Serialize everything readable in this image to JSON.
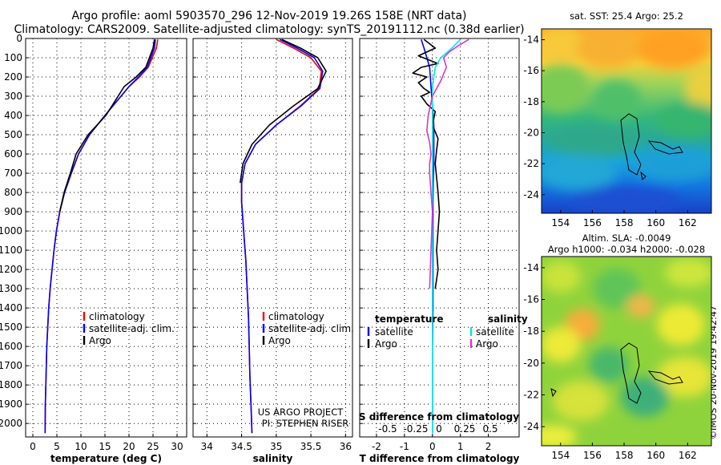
{
  "header": {
    "title_line1": "Argo profile: aoml 5903570_296 12-Nov-2019 19.26S 158E (NRT data)",
    "title_line2": "Climatology: CARS2009. Satellite-adjusted climatology: synTS_20191112.nc (0.38d earlier)"
  },
  "depth_axis": {
    "ticks": [
      0,
      100,
      200,
      300,
      400,
      500,
      600,
      700,
      800,
      900,
      1000,
      1100,
      1200,
      1300,
      1400,
      1500,
      1600,
      1700,
      1800,
      1900,
      2000
    ],
    "ylim": [
      2070,
      0
    ]
  },
  "chart_data": [
    {
      "type": "line",
      "id": "temperature",
      "xlabel": "temperature (deg C)",
      "xlim": [
        -1.5,
        32
      ],
      "xticks": [
        0,
        5,
        10,
        15,
        20,
        25,
        30
      ],
      "xtick_labels": [
        "0",
        "5",
        "10",
        "15",
        "20",
        "25",
        "30"
      ],
      "legend": {
        "position": "center-right",
        "items": [
          "climatology",
          "satellite-adj. clim.",
          "Argo"
        ]
      },
      "series": [
        {
          "name": "climatology",
          "color": "#ff0000",
          "x": [
            26.0,
            25.7,
            24.0,
            22.2,
            20.0,
            15.0,
            11.8,
            9.5,
            8.0,
            6.6,
            5.6,
            4.9,
            4.4,
            4.0,
            3.6,
            3.3,
            3.1,
            2.9,
            2.8,
            2.7,
            2.6,
            2.55
          ],
          "y": [
            5,
            50,
            150,
            200,
            250,
            400,
            500,
            600,
            700,
            800,
            900,
            1000,
            1100,
            1200,
            1300,
            1400,
            1500,
            1600,
            1700,
            1800,
            1900,
            2050
          ]
        },
        {
          "name": "satellite-adj. clim.",
          "color": "#0000ff",
          "x": [
            25.5,
            25.3,
            23.8,
            22.0,
            20.0,
            15.0,
            11.8,
            9.5,
            8.0,
            6.6,
            5.6,
            4.9,
            4.4,
            4.0,
            3.6,
            3.3,
            3.1,
            2.9,
            2.8,
            2.7,
            2.6,
            2.55
          ],
          "y": [
            5,
            50,
            150,
            200,
            250,
            400,
            500,
            600,
            700,
            800,
            900,
            1000,
            1100,
            1200,
            1300,
            1400,
            1500,
            1600,
            1700,
            1800,
            1900,
            2050
          ]
        },
        {
          "name": "Argo",
          "color": "#000000",
          "x": [
            25.3,
            25.0,
            23.5,
            21.5,
            19.0,
            15.2,
            11.5,
            9.0,
            7.8,
            6.5,
            5.6
          ],
          "y": [
            5,
            50,
            150,
            200,
            250,
            400,
            500,
            600,
            700,
            800,
            900
          ]
        }
      ]
    },
    {
      "type": "line",
      "id": "salinity",
      "xlabel": "salinity",
      "xlim": [
        33.8,
        36.1
      ],
      "xticks": [
        34,
        34.5,
        35,
        35.5,
        36
      ],
      "xtick_labels": [
        "34",
        "34.5",
        "35",
        "35.5",
        "36"
      ],
      "legend": {
        "position": "center-right",
        "items": [
          "climatology",
          "satellite-adj. clim.",
          "Argo"
        ]
      },
      "series": [
        {
          "name": "climatology",
          "color": "#ff0000",
          "x": [
            35.0,
            35.25,
            35.5,
            35.65,
            35.62,
            35.35,
            35.0,
            34.7,
            34.55,
            34.5,
            34.5,
            34.52,
            34.54,
            34.56,
            34.58,
            34.6,
            34.61,
            34.62,
            34.63,
            34.64,
            34.65
          ],
          "y": [
            5,
            50,
            100,
            170,
            260,
            350,
            450,
            550,
            650,
            750,
            850,
            950,
            1050,
            1150,
            1300,
            1450,
            1600,
            1750,
            1850,
            1950,
            2050
          ]
        },
        {
          "name": "satellite-adj. clim.",
          "color": "#0000ff",
          "x": [
            35.05,
            35.3,
            35.55,
            35.67,
            35.63,
            35.36,
            35.0,
            34.7,
            34.55,
            34.5,
            34.5,
            34.52,
            34.54,
            34.56,
            34.58,
            34.6,
            34.61,
            34.62,
            34.63,
            34.64,
            34.65
          ],
          "y": [
            5,
            50,
            100,
            170,
            260,
            350,
            450,
            550,
            650,
            750,
            850,
            950,
            1050,
            1150,
            1300,
            1450,
            1600,
            1750,
            1850,
            1950,
            2050
          ]
        },
        {
          "name": "Argo",
          "color": "#000000",
          "x": [
            35.08,
            35.35,
            35.6,
            35.72,
            35.6,
            35.25,
            34.9,
            34.65,
            34.52,
            34.48
          ],
          "y": [
            5,
            50,
            100,
            170,
            260,
            350,
            450,
            550,
            650,
            750
          ]
        }
      ]
    },
    {
      "type": "line",
      "id": "difference",
      "xlabel": "T difference from climatology",
      "xlabel2": "S difference from climatology",
      "xlim": [
        -2.6,
        3.1
      ],
      "xticks": [
        -2,
        -1,
        0,
        1,
        2
      ],
      "xtick_labels": [
        "-2",
        "-1",
        "0",
        "1",
        "2"
      ],
      "s_tick_labels": [
        "-0.5",
        "-0.25",
        "0",
        "0.25",
        "0.5"
      ],
      "legend": {
        "temperature_title": "temperature",
        "salinity_title": "salinity",
        "items": [
          "satellite",
          "Argo",
          "satellite",
          "Argo"
        ]
      },
      "series": [
        {
          "name": "temperature satellite",
          "color": "#0000ff",
          "x": [
            -0.4,
            -0.3,
            -0.2,
            -0.1,
            -0.05,
            0,
            0.05,
            0.05,
            0.05,
            0.03,
            0.02,
            0.02,
            0.02,
            0.02,
            0.02,
            0.0,
            0.0,
            0.0
          ],
          "y": [
            5,
            50,
            100,
            150,
            250,
            350,
            450,
            550,
            650,
            750,
            850,
            950,
            1050,
            1200,
            1400,
            1600,
            1800,
            2050
          ]
        },
        {
          "name": "temperature Argo",
          "color": "#000000",
          "x": [
            -0.3,
            0.1,
            -0.5,
            0.2,
            -0.4,
            -0.7,
            -0.2,
            -0.5,
            -0.3,
            -0.1,
            -0.4,
            -0.2,
            0.1,
            0.0,
            0.2,
            0.15,
            0.1,
            0.2,
            0.25,
            0.2,
            0.15,
            0.2,
            0.1
          ],
          "y": [
            5,
            50,
            90,
            130,
            150,
            180,
            200,
            230,
            260,
            280,
            300,
            340,
            380,
            450,
            520,
            580,
            650,
            800,
            900,
            1000,
            1100,
            1200,
            1300
          ]
        },
        {
          "name": "salinity satellite",
          "color": "#00e6e6",
          "x": [
            1.0,
            0.7,
            0.3,
            0.1,
            0.0,
            0.0,
            0.0,
            0.0,
            0.0,
            0.0,
            0.0,
            0.0,
            0.0,
            0.0,
            0.0,
            0.0,
            0.0,
            0.0
          ],
          "y": [
            5,
            50,
            100,
            150,
            250,
            350,
            450,
            550,
            650,
            750,
            850,
            950,
            1050,
            1200,
            1400,
            1600,
            1800,
            2050
          ]
        },
        {
          "name": "salinity Argo",
          "color": "#dd33cc",
          "x": [
            1.3,
            0.9,
            0.6,
            0.4,
            0.5,
            0.3,
            0.0,
            -0.15,
            -0.2,
            -0.1,
            -0.05,
            -0.1,
            -0.1,
            -0.05,
            0.0,
            -0.05,
            -0.1
          ],
          "y": [
            5,
            40,
            70,
            100,
            150,
            220,
            300,
            400,
            480,
            540,
            600,
            650,
            700,
            800,
            900,
            1100,
            1300
          ]
        }
      ]
    },
    {
      "type": "heatmap",
      "id": "sst_map",
      "title": "sat. SST: 25.4 Argo: 25.2",
      "xticks": [
        154,
        156,
        158,
        160,
        162
      ],
      "yticks": [
        -14,
        -16,
        -18,
        -20,
        -22,
        -24
      ],
      "xlim": [
        152.8,
        163.5
      ],
      "ylim": [
        -25.2,
        -13.3
      ],
      "marker": {
        "lon": 158.0,
        "lat": -19.26
      }
    },
    {
      "type": "heatmap",
      "id": "sla_map",
      "title_line1": "Altim. SLA: -0.0049",
      "title_line2": "Argo h1000: -0.034 h2000: -0.028",
      "xticks": [
        154,
        156,
        158,
        160,
        162
      ],
      "yticks": [
        -14,
        -16,
        -18,
        -20,
        -22,
        -24
      ],
      "xlim": [
        152.8,
        163.5
      ],
      "ylim": [
        -25.2,
        -13.3
      ],
      "marker": {
        "lon": 158.0,
        "lat": -19.26
      }
    }
  ],
  "annotations": {
    "project_line1": "US ARGO PROJECT",
    "project_line2": "PI: STEPHEN RISER",
    "imos_stamp": "©IMOS 20-Nov-2019 19:42:47"
  }
}
